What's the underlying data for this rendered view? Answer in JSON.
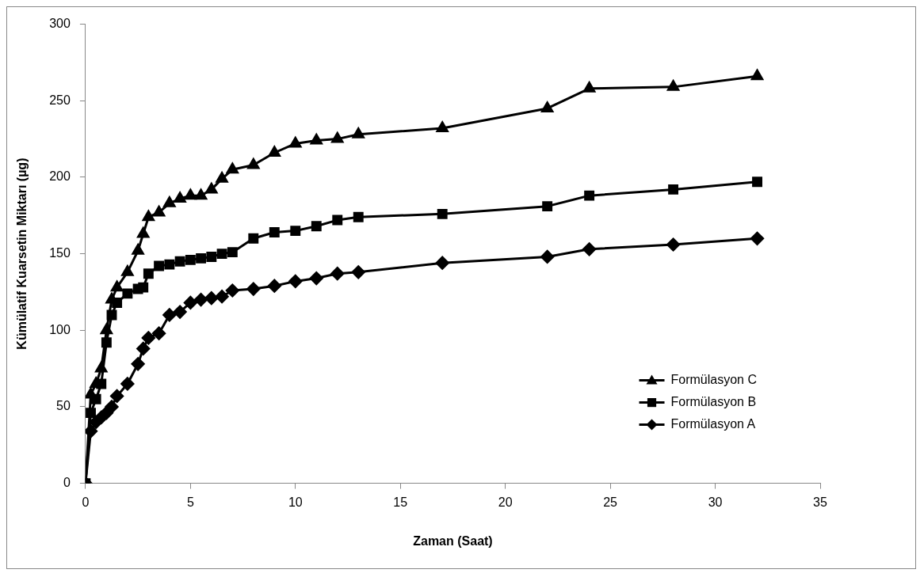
{
  "chart_data": {
    "type": "line",
    "xlabel": "Zaman (Saat)",
    "ylabel": "Kümülatif Kuarsetin Miktarı (µg)",
    "x": [
      0,
      0.25,
      0.5,
      0.75,
      1,
      1.25,
      1.5,
      2,
      2.5,
      2.75,
      3,
      3.5,
      4,
      4.5,
      5,
      5.5,
      6,
      6.5,
      7,
      8,
      9,
      10,
      11,
      12,
      13,
      17,
      22,
      24,
      28,
      32
    ],
    "series": [
      {
        "name": "Formülasyon C",
        "color": "#000000",
        "marker": "triangle",
        "values": [
          0,
          58,
          65,
          75,
          100,
          120,
          128,
          138,
          152,
          163,
          174,
          177,
          183,
          186,
          188,
          188,
          192,
          199,
          205,
          208,
          216,
          222,
          224,
          225,
          228,
          232,
          245,
          258,
          259,
          266
        ]
      },
      {
        "name": "Formülasyon B",
        "color": "#000000",
        "marker": "square",
        "values": [
          0,
          46,
          55,
          65,
          92,
          110,
          118,
          124,
          127,
          128,
          137,
          142,
          143,
          145,
          146,
          147,
          148,
          150,
          151,
          160,
          164,
          165,
          168,
          172,
          174,
          176,
          181,
          188,
          192,
          197
        ]
      },
      {
        "name": "Formülasyon A",
        "color": "#000000",
        "marker": "diamond",
        "values": [
          0,
          34,
          40,
          43,
          46,
          50,
          57,
          65,
          78,
          88,
          95,
          98,
          110,
          112,
          118,
          120,
          121,
          122,
          126,
          127,
          129,
          132,
          134,
          137,
          138,
          144,
          148,
          153,
          156,
          160
        ]
      }
    ],
    "xlim": [
      0,
      35
    ],
    "xticks": [
      0,
      5,
      10,
      15,
      20,
      25,
      30,
      35
    ],
    "ylim": [
      0,
      300
    ],
    "yticks": [
      0,
      50,
      100,
      150,
      200,
      250,
      300
    ],
    "grid": false,
    "legend": "bottom right",
    "line_style": "solid"
  }
}
